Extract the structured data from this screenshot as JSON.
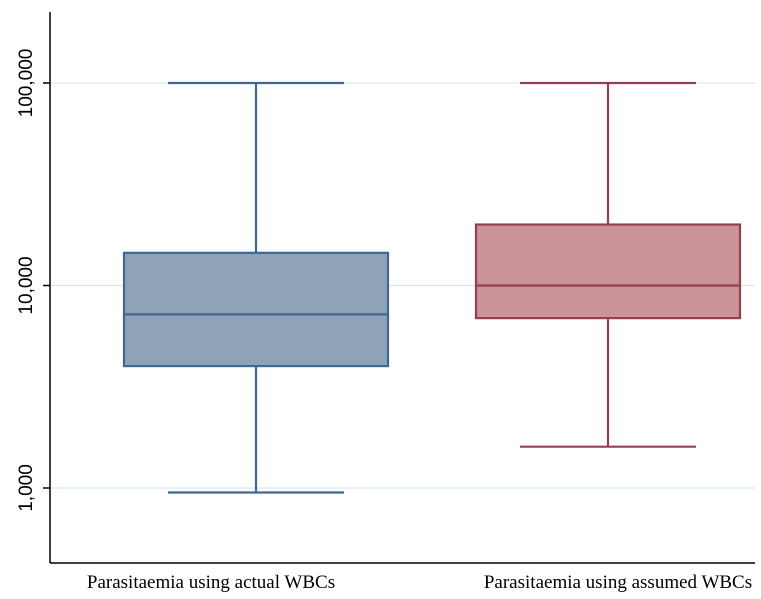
{
  "chart_data": {
    "type": "box",
    "title": "",
    "xlabel": "",
    "ylabel": "",
    "y_scale": "log",
    "ylim": [
      500,
      200000
    ],
    "grid": true,
    "y_ticks": [
      {
        "value": 1000,
        "label": "1,000"
      },
      {
        "value": 10000,
        "label": "10,000"
      },
      {
        "value": 100000,
        "label": "100,000"
      }
    ],
    "categories": [
      "Parasitaemia using actual WBCs",
      "Parasitaemia using assumed WBCs"
    ],
    "series": [
      {
        "category": "Parasitaemia using actual WBCs",
        "min": 950,
        "q1": 4000,
        "median": 7200,
        "q3": 14500,
        "max": 100000,
        "fill": "#8ea3b8",
        "stroke": "#3e6891"
      },
      {
        "category": "Parasitaemia using assumed WBCs",
        "min": 1600,
        "q1": 6900,
        "median": 10000,
        "q3": 20000,
        "max": 100000,
        "fill": "#c9959a",
        "stroke": "#96404f"
      }
    ],
    "colors": {
      "axis": "#000000",
      "grid": "#d9e6e9",
      "background": "#ffffff"
    }
  }
}
